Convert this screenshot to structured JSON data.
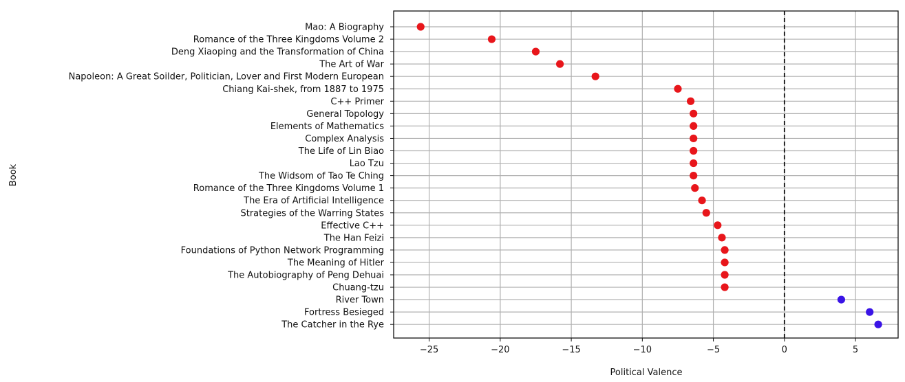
{
  "chart_data": {
    "type": "scatter",
    "xlabel": "Political Valence",
    "ylabel": "Book",
    "xlim": [
      -27.5,
      8.0
    ],
    "xticks": [
      -25,
      -20,
      -15,
      -10,
      -5,
      0,
      5
    ],
    "xtick_labels": [
      "−25",
      "−20",
      "−15",
      "−10",
      "−5",
      "0",
      "5"
    ],
    "grid": true,
    "reference_line": {
      "x": 0,
      "style": "dashed"
    },
    "colors": {
      "negative": "#e8161b",
      "positive": "#3a14e6",
      "grid": "#b0b0b0",
      "reference": "#111111"
    },
    "points": [
      {
        "book": "Mao: A Biography",
        "value": -25.6
      },
      {
        "book": "Romance of the Three Kingdoms Volume 2",
        "value": -20.6
      },
      {
        "book": "Deng Xiaoping and the Transformation of China",
        "value": -17.5
      },
      {
        "book": "The Art of War",
        "value": -15.8
      },
      {
        "book": "Napoleon: A Great Soilder, Politician, Lover and First Modern European",
        "value": -13.3
      },
      {
        "book": "Chiang Kai-shek, from 1887 to 1975",
        "value": -7.5
      },
      {
        "book": "C++ Primer",
        "value": -6.6
      },
      {
        "book": "General Topology",
        "value": -6.4
      },
      {
        "book": "Elements of Mathematics",
        "value": -6.4
      },
      {
        "book": "Complex Analysis",
        "value": -6.4
      },
      {
        "book": "The Life of Lin Biao",
        "value": -6.4
      },
      {
        "book": "Lao Tzu",
        "value": -6.4
      },
      {
        "book": "The Widsom of Tao Te Ching",
        "value": -6.4
      },
      {
        "book": "Romance of the Three Kingdoms Volume 1",
        "value": -6.3
      },
      {
        "book": "The Era of Artificial Intelligence",
        "value": -5.8
      },
      {
        "book": "Strategies of the Warring States",
        "value": -5.5
      },
      {
        "book": "Effective C++",
        "value": -4.7
      },
      {
        "book": "The Han Feizi",
        "value": -4.4
      },
      {
        "book": "Foundations of Python Network Programming",
        "value": -4.2
      },
      {
        "book": "The Meaning of Hitler",
        "value": -4.2
      },
      {
        "book": "The Autobiography of Peng Dehuai",
        "value": -4.2
      },
      {
        "book": "Chuang-tzu",
        "value": -4.2
      },
      {
        "book": "River Town",
        "value": 4.0
      },
      {
        "book": "Fortress Besieged",
        "value": 6.0
      },
      {
        "book": "The Catcher in the Rye",
        "value": 6.6
      }
    ]
  }
}
